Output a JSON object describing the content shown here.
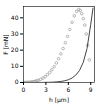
{
  "chart_data": {
    "type": "line",
    "xlabel": "h [µm]",
    "ylabel": "F [mN]",
    "xlim": [
      0,
      9.5
    ],
    "ylim": [
      0,
      47
    ],
    "xticks": [
      0,
      3,
      6,
      9
    ],
    "yticks": [
      0,
      10,
      20,
      30,
      40
    ],
    "grid": false,
    "series": [
      {
        "type": "scatter",
        "marker": "o",
        "color": "#999999",
        "x": [
          0.0,
          0.2,
          0.4,
          0.6,
          0.8,
          1.0,
          1.2,
          1.4,
          1.6,
          1.8,
          2.0,
          2.3,
          2.6,
          2.9,
          3.2,
          3.5,
          3.8,
          4.1,
          4.4,
          4.7,
          5.0,
          5.3,
          5.6,
          5.9,
          6.2,
          6.5,
          6.8,
          7.1,
          7.4,
          7.6,
          7.8,
          8.0,
          8.2,
          8.4,
          8.6,
          8.8
        ],
        "values": [
          0.0,
          0.02,
          0.05,
          0.1,
          0.17,
          0.27,
          0.4,
          0.57,
          0.78,
          1.05,
          1.38,
          1.95,
          2.7,
          3.65,
          4.8,
          6.2,
          7.85,
          9.8,
          12.1,
          14.7,
          17.7,
          21.0,
          24.6,
          28.5,
          32.8,
          37.2,
          41.2,
          44.0,
          45.2,
          44.5,
          42.5,
          39.5,
          35.5,
          30.0,
          23.0,
          14.0
        ]
      },
      {
        "type": "line",
        "line_style": "solid",
        "color": "#444444",
        "x": [
          0.0,
          0.5,
          1.0,
          1.5,
          2.0,
          2.5,
          3.0,
          3.5,
          4.0,
          4.5,
          5.0,
          5.5,
          6.0,
          6.5,
          7.0,
          7.5,
          8.0,
          8.5,
          9.0,
          9.3
        ],
        "values": [
          0.0,
          0.0,
          0.0,
          0.01,
          0.02,
          0.04,
          0.08,
          0.14,
          0.24,
          0.4,
          0.65,
          1.05,
          1.7,
          2.8,
          4.6,
          7.5,
          12.5,
          21.0,
          36.0,
          46.0
        ]
      }
    ]
  }
}
